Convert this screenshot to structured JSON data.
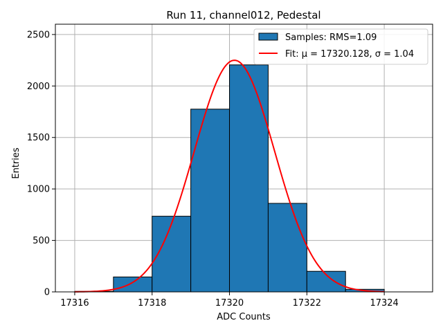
{
  "chart_data": {
    "type": "bar",
    "title": "Run 11, channel012, Pedestal",
    "xlabel": "ADC Counts",
    "ylabel": "Entries",
    "xlim": [
      17315.5,
      17325.25
    ],
    "ylim": [
      0,
      2600
    ],
    "xticks": [
      17316,
      17318,
      17320,
      17322,
      17324
    ],
    "yticks": [
      0,
      500,
      1000,
      1500,
      2000,
      2500
    ],
    "grid": true,
    "legend_position": "top-right",
    "bins": {
      "edges": [
        17316,
        17317,
        17318,
        17319,
        17320,
        17321,
        17322,
        17323,
        17324,
        17325
      ],
      "counts": [
        5,
        145,
        735,
        1775,
        2205,
        860,
        200,
        25,
        0
      ]
    },
    "series": [
      {
        "name": "Samples: RMS=1.09",
        "kind": "histogram",
        "color": "#1f77b4",
        "edgecolor": "#000000"
      },
      {
        "name": "Fit: μ = 17320.128, σ = 1.04",
        "kind": "gaussian",
        "color": "#ff0000",
        "mu": 17320.128,
        "sigma": 1.04,
        "amplitude": 2250,
        "x_range": [
          17316,
          17324
        ]
      }
    ]
  }
}
